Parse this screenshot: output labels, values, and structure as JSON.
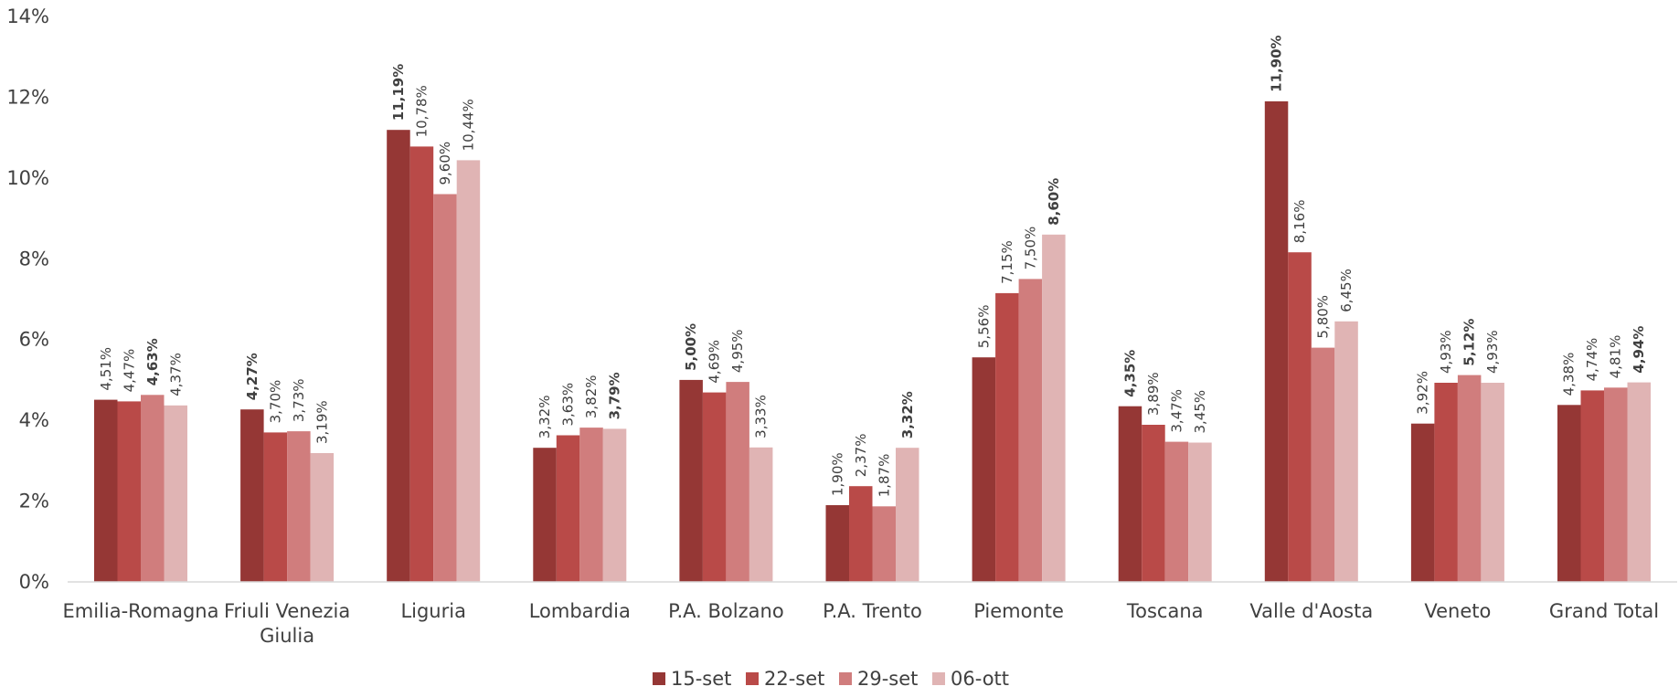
{
  "chart_data": {
    "type": "bar",
    "title": "",
    "xlabel": "",
    "ylabel": "",
    "ylim": [
      0,
      14
    ],
    "yticks": [
      "0%",
      "2%",
      "4%",
      "6%",
      "8%",
      "10%",
      "12%",
      "14%"
    ],
    "grid": false,
    "legend_position": "bottom",
    "categories": [
      [
        "Emilia-Romagna"
      ],
      [
        "Friuli Venezia",
        "Giulia"
      ],
      [
        "Liguria"
      ],
      [
        "Lombardia"
      ],
      [
        "P.A. Bolzano"
      ],
      [
        "P.A. Trento"
      ],
      [
        "Piemonte"
      ],
      [
        "Toscana"
      ],
      [
        "Valle d'Aosta"
      ],
      [
        "Veneto"
      ],
      [
        "Grand Total"
      ]
    ],
    "series": [
      {
        "name": "15-set",
        "color": "#953735",
        "values": [
          4.51,
          4.27,
          11.19,
          3.32,
          5.0,
          1.9,
          5.56,
          4.35,
          11.9,
          3.92,
          4.38
        ],
        "labels": [
          "4,51%",
          "4,27%",
          "11,19%",
          "3,32%",
          "5,00%",
          "1,90%",
          "5,56%",
          "4,35%",
          "11,90%",
          "3,92%",
          "4,38%"
        ]
      },
      {
        "name": "22-set",
        "color": "#B94A48",
        "values": [
          4.47,
          3.7,
          10.78,
          3.63,
          4.69,
          2.37,
          7.15,
          3.89,
          8.16,
          4.93,
          4.74
        ],
        "labels": [
          "4,47%",
          "3,70%",
          "10,78%",
          "3,63%",
          "4,69%",
          "2,37%",
          "7,15%",
          "3,89%",
          "8,16%",
          "4,93%",
          "4,74%"
        ]
      },
      {
        "name": "29-set",
        "color": "#D07D7D",
        "values": [
          4.63,
          3.73,
          9.6,
          3.82,
          4.95,
          1.87,
          7.5,
          3.47,
          5.8,
          5.12,
          4.81
        ],
        "labels": [
          "4,63%",
          "3,73%",
          "9,60%",
          "3,82%",
          "4,95%",
          "1,87%",
          "7,50%",
          "3,47%",
          "5,80%",
          "5,12%",
          "4,81%"
        ]
      },
      {
        "name": "06-ott",
        "color": "#E0B4B4",
        "values": [
          4.37,
          3.19,
          10.44,
          3.79,
          3.33,
          3.32,
          8.6,
          3.45,
          6.45,
          4.93,
          4.94
        ],
        "labels": [
          "4,37%",
          "3,19%",
          "10,44%",
          "3,79%",
          "3,33%",
          "3,32%",
          "8,60%",
          "3,45%",
          "6,45%",
          "4,93%",
          "4,94%"
        ]
      }
    ],
    "bold_labels": [
      [
        0,
        2
      ],
      [
        1,
        0
      ],
      [
        2,
        0
      ],
      [
        3,
        3
      ],
      [
        4,
        0
      ],
      [
        5,
        3
      ],
      [
        6,
        3
      ],
      [
        7,
        0
      ],
      [
        8,
        0
      ],
      [
        9,
        2
      ],
      [
        10,
        3
      ]
    ]
  }
}
